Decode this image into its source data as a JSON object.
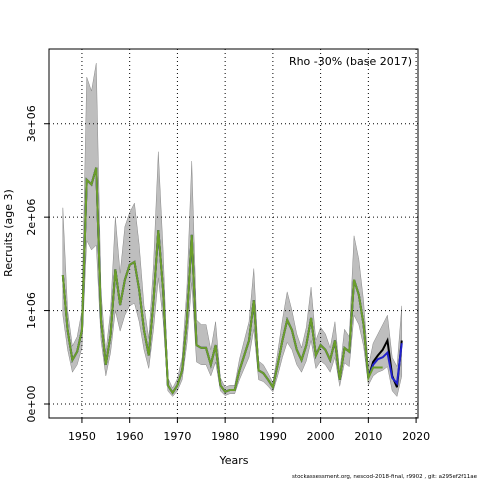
{
  "chart_data": {
    "type": "line",
    "annotation": "Rho -30% (base 2017)",
    "x_label": "Years",
    "y_label": "Recruits (age 3)",
    "footer": "stockassessment.org, nescod-2018-final, r9902 , git: a295ef2f11ae",
    "x": [
      1946,
      1947,
      1948,
      1949,
      1950,
      1951,
      1952,
      1953,
      1954,
      1955,
      1956,
      1957,
      1958,
      1959,
      1960,
      1961,
      1962,
      1963,
      1964,
      1965,
      1966,
      1967,
      1968,
      1969,
      1970,
      1971,
      1972,
      1973,
      1974,
      1975,
      1976,
      1977,
      1978,
      1979,
      1980,
      1981,
      1982,
      1983,
      1984,
      1985,
      1986,
      1987,
      1988,
      1989,
      1990,
      1991,
      1992,
      1993,
      1994,
      1995,
      1996,
      1997,
      1998,
      1999,
      2000,
      2001,
      2002,
      2003,
      2004,
      2005,
      2006,
      2007,
      2008,
      2009,
      2010,
      2011,
      2012,
      2013,
      2014,
      2015,
      2016,
      2017
    ],
    "band": {
      "color": "#bebebe",
      "upper": [
        2100000,
        1000000,
        620000,
        720000,
        1000000,
        3500000,
        3350000,
        3650000,
        1200000,
        550000,
        1000000,
        2000000,
        1400000,
        1900000,
        2050000,
        2150000,
        1700000,
        1050000,
        700000,
        1500000,
        2700000,
        1650000,
        280000,
        170000,
        270000,
        500000,
        1250000,
        2600000,
        900000,
        850000,
        850000,
        580000,
        880000,
        280000,
        180000,
        200000,
        200000,
        480000,
        680000,
        880000,
        1450000,
        460000,
        420000,
        330000,
        230000,
        550000,
        900000,
        1200000,
        1000000,
        750000,
        600000,
        820000,
        1250000,
        680000,
        820000,
        750000,
        600000,
        880000,
        340000,
        800000,
        720000,
        1800000,
        1550000,
        1100000,
        400000,
        650000,
        750000,
        850000,
        950000,
        500000,
        400000,
        1050000
      ],
      "lower": [
        950000,
        580000,
        340000,
        420000,
        600000,
        1750000,
        1650000,
        1700000,
        680000,
        300000,
        550000,
        1000000,
        780000,
        950000,
        1050000,
        1080000,
        880000,
        580000,
        380000,
        800000,
        1350000,
        900000,
        140000,
        80000,
        140000,
        260000,
        650000,
        1300000,
        450000,
        420000,
        420000,
        300000,
        450000,
        140000,
        90000,
        110000,
        110000,
        260000,
        380000,
        500000,
        800000,
        260000,
        240000,
        190000,
        130000,
        300000,
        500000,
        660000,
        580000,
        420000,
        340000,
        460000,
        680000,
        380000,
        460000,
        420000,
        340000,
        500000,
        190000,
        440000,
        400000,
        950000,
        850000,
        620000,
        200000,
        300000,
        340000,
        360000,
        400000,
        140000,
        80000,
        300000
      ]
    },
    "series": [
      {
        "color": "#000000",
        "values": [
          1380000,
          790000,
          470000,
          560000,
          790000,
          2400000,
          2350000,
          2530000,
          900000,
          420000,
          740000,
          1440000,
          1060000,
          1330000,
          1490000,
          1520000,
          1220000,
          790000,
          520000,
          1110000,
          1860000,
          1220000,
          200000,
          120000,
          200000,
          360000,
          900000,
          1810000,
          630000,
          600000,
          600000,
          420000,
          630000,
          200000,
          130000,
          150000,
          150000,
          360000,
          520000,
          680000,
          1110000,
          360000,
          330000,
          260000,
          180000,
          420000,
          680000,
          900000,
          790000,
          580000,
          470000,
          630000,
          920000,
          520000,
          630000,
          580000,
          470000,
          680000,
          260000,
          600000,
          560000,
          1330000,
          1170000,
          850000,
          280000,
          450000,
          520000,
          580000,
          680000,
          300000,
          180000,
          680000
        ]
      },
      {
        "color": "#2222cc",
        "values": [
          1380000,
          790000,
          470000,
          560000,
          790000,
          2400000,
          2350000,
          2530000,
          900000,
          420000,
          740000,
          1440000,
          1060000,
          1330000,
          1490000,
          1520000,
          1220000,
          790000,
          520000,
          1110000,
          1860000,
          1220000,
          200000,
          120000,
          200000,
          360000,
          900000,
          1810000,
          630000,
          600000,
          600000,
          420000,
          630000,
          200000,
          130000,
          150000,
          150000,
          360000,
          520000,
          680000,
          1110000,
          360000,
          330000,
          260000,
          180000,
          420000,
          680000,
          900000,
          790000,
          580000,
          470000,
          630000,
          920000,
          520000,
          630000,
          580000,
          470000,
          680000,
          260000,
          600000,
          560000,
          1330000,
          1170000,
          850000,
          280000,
          420000,
          480000,
          500000,
          550000,
          280000,
          220000,
          650000
        ]
      },
      {
        "color": "#6b9e2a",
        "values": [
          1380000,
          790000,
          470000,
          560000,
          790000,
          2400000,
          2350000,
          2530000,
          900000,
          420000,
          740000,
          1440000,
          1060000,
          1330000,
          1490000,
          1520000,
          1220000,
          790000,
          520000,
          1110000,
          1860000,
          1220000,
          200000,
          120000,
          200000,
          360000,
          900000,
          1810000,
          630000,
          600000,
          600000,
          420000,
          630000,
          200000,
          130000,
          150000,
          150000,
          360000,
          520000,
          680000,
          1110000,
          360000,
          330000,
          260000,
          180000,
          420000,
          680000,
          900000,
          790000,
          580000,
          470000,
          630000,
          920000,
          520000,
          630000,
          580000,
          470000,
          680000,
          260000,
          600000,
          560000,
          1330000,
          1170000,
          850000,
          280000,
          390000,
          390000,
          390000,
          null,
          null,
          null,
          null
        ]
      }
    ],
    "xlim": [
      1943.1,
      2020.4
    ],
    "ylim": [
      -150000,
      3800000
    ],
    "xticks": [
      1950,
      1960,
      1970,
      1980,
      1990,
      2000,
      2010,
      2020
    ],
    "yticks": [
      {
        "value": 0,
        "label": "0e+00"
      },
      {
        "value": 1000000,
        "label": "1e+06"
      },
      {
        "value": 2000000,
        "label": "2e+06"
      },
      {
        "value": 3000000,
        "label": "3e+06"
      }
    ],
    "grid": true
  }
}
